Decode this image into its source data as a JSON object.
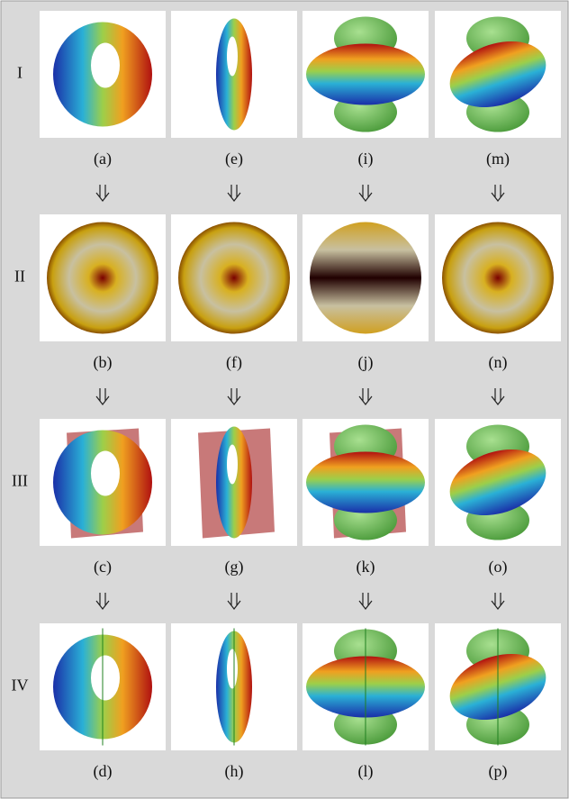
{
  "figure": {
    "rows": [
      {
        "label": "I",
        "captions": [
          "(a)",
          "(e)",
          "(i)",
          "(m)"
        ]
      },
      {
        "label": "II",
        "captions": [
          "(b)",
          "(f)",
          "(j)",
          "(n)"
        ]
      },
      {
        "label": "III",
        "captions": [
          "(c)",
          "(g)",
          "(k)",
          "(o)"
        ]
      },
      {
        "label": "IV",
        "captions": [
          "(d)",
          "(h)",
          "(l)",
          "(p)"
        ]
      }
    ]
  }
}
